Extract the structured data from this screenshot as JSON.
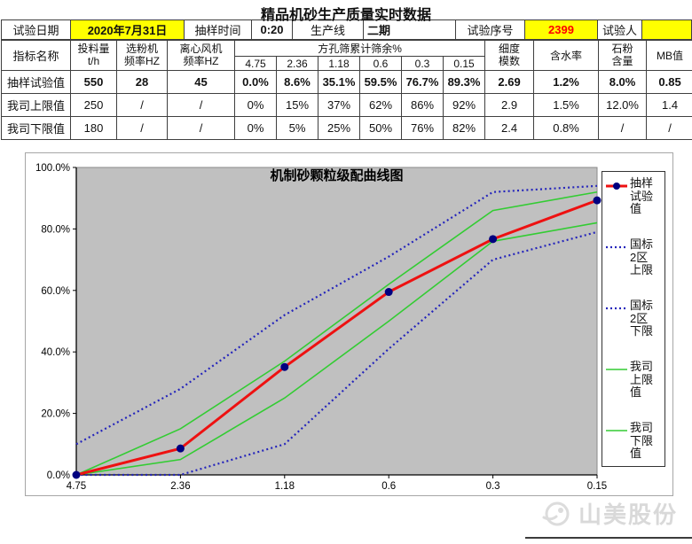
{
  "title": "精品机砂生产质量实时数据",
  "info": {
    "date_label": "试验日期",
    "date_value": "2020年7月31日",
    "time_label": "抽样时间",
    "time_value": "0:20",
    "line_label": "生产线",
    "line_value": "二期",
    "serial_label": "试验序号",
    "serial_value": "2399",
    "tester_label": "试验人",
    "tester_value": ""
  },
  "table": {
    "corner": "指标名称",
    "col_headers": [
      "投料量\nt/h",
      "选粉机\n频率HZ",
      "离心风机\n频率HZ"
    ],
    "sieve_group": "方孔筛累计筛余%",
    "sieve_sizes": [
      "4.75",
      "2.36",
      "1.18",
      "0.6",
      "0.3",
      "0.15"
    ],
    "tail_headers": [
      "细度\n模数",
      "含水率",
      "石粉\n含量",
      "MB值"
    ],
    "rows": [
      {
        "name": "抽样试验值",
        "bold": true,
        "values": [
          "550",
          "28",
          "45",
          "0.0%",
          "8.6%",
          "35.1%",
          "59.5%",
          "76.7%",
          "89.3%",
          "2.69",
          "1.2%",
          "8.0%",
          "0.85"
        ]
      },
      {
        "name": "我司上限值",
        "bold": false,
        "values": [
          "250",
          "/",
          "/",
          "0%",
          "15%",
          "37%",
          "62%",
          "86%",
          "92%",
          "2.9",
          "1.5%",
          "12.0%",
          "1.4"
        ]
      },
      {
        "name": "我司下限值",
        "bold": false,
        "values": [
          "180",
          "/",
          "/",
          "0%",
          "5%",
          "25%",
          "50%",
          "76%",
          "82%",
          "2.4",
          "0.8%",
          "/",
          "/"
        ]
      }
    ]
  },
  "chart_data": {
    "type": "line",
    "title": "机制砂颗粒级配曲线图",
    "x": [
      "4.75",
      "2.36",
      "1.18",
      "0.6",
      "0.3",
      "0.15"
    ],
    "y_tick_labels": [
      "100.0%",
      "80.0%",
      "60.0%",
      "40.0%",
      "20.0%",
      "0.0%"
    ],
    "ylim": [
      0,
      100
    ],
    "plot_bg": "#c0c0c0",
    "grid": false,
    "legend_position": "right",
    "series": [
      {
        "key": "sample-line",
        "name": "抽样试验值",
        "values": [
          0,
          8.6,
          35.1,
          59.5,
          76.7,
          89.3
        ],
        "color": "#ee1111",
        "style": "solid",
        "width": 3,
        "marker_color": "#000080",
        "marker_r": 4.5
      },
      {
        "key": "gb-zone2-upper",
        "name": "国标2区上限",
        "values": [
          10,
          28,
          52,
          71,
          92,
          94
        ],
        "color": "#2424bb",
        "style": "dotted",
        "width": 2.2
      },
      {
        "key": "gb-zone2-lower",
        "name": "国标2区下限",
        "values": [
          0,
          0,
          10,
          41,
          70,
          79
        ],
        "color": "#2424bb",
        "style": "dotted",
        "width": 2.2
      },
      {
        "key": "company-upper",
        "name": "我司上限值",
        "values": [
          0,
          15,
          37,
          62,
          86,
          92
        ],
        "color": "#33cc33",
        "style": "solid",
        "width": 1.6
      },
      {
        "key": "company-lower",
        "name": "我司下限值",
        "values": [
          0,
          5,
          25,
          50,
          76,
          82
        ],
        "color": "#33cc33",
        "style": "solid",
        "width": 1.6
      }
    ],
    "legend_labels": [
      "抽样\n试验\n值",
      "国标\n2区\n上限",
      "国标\n2区\n下限",
      "我司\n上限\n值",
      "我司\n下限\n值"
    ]
  },
  "logo": {
    "text": "山美股份"
  }
}
